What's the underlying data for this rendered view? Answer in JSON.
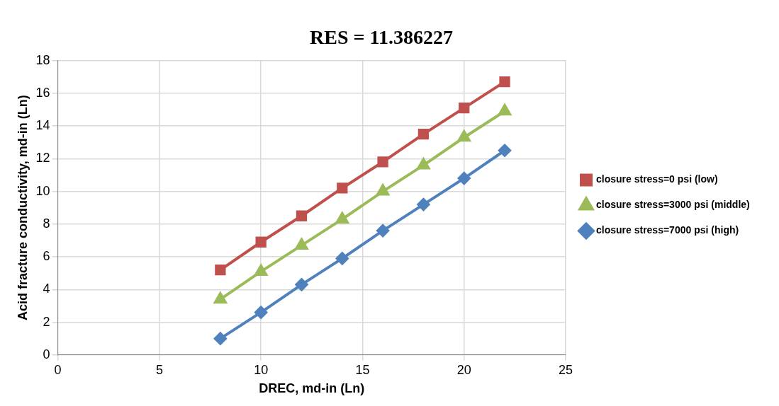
{
  "chart_data": {
    "type": "line",
    "title": "RES = 11.386227",
    "xlabel": "DREC, md-in (Ln)",
    "ylabel": "Acid fracture conductivity, md-in (Ln)",
    "xlim": [
      0,
      25
    ],
    "xticks": [
      0,
      5,
      10,
      15,
      20,
      25
    ],
    "ylim": [
      0,
      18
    ],
    "yticks": [
      0,
      2,
      4,
      6,
      8,
      10,
      12,
      14,
      16,
      18
    ],
    "grid": true,
    "legend": "right",
    "x": [
      8,
      10,
      12,
      14,
      16,
      18,
      20,
      22
    ],
    "series": [
      {
        "name": "closure stress=0 psi (low)",
        "color": "#c0504d",
        "marker": "square",
        "values": [
          5.2,
          6.9,
          8.5,
          10.2,
          11.8,
          13.5,
          15.1,
          16.7
        ]
      },
      {
        "name": "closure stress=3000 psi (middle)",
        "color": "#9bbb59",
        "marker": "triangle",
        "values": [
          3.4,
          5.1,
          6.7,
          8.3,
          10.0,
          11.6,
          13.3,
          14.9
        ]
      },
      {
        "name": "closure stress=7000 psi (high)",
        "color": "#4f81bd",
        "marker": "diamond",
        "values": [
          1.0,
          2.6,
          4.3,
          5.9,
          7.6,
          9.2,
          10.8,
          12.5
        ]
      }
    ]
  }
}
